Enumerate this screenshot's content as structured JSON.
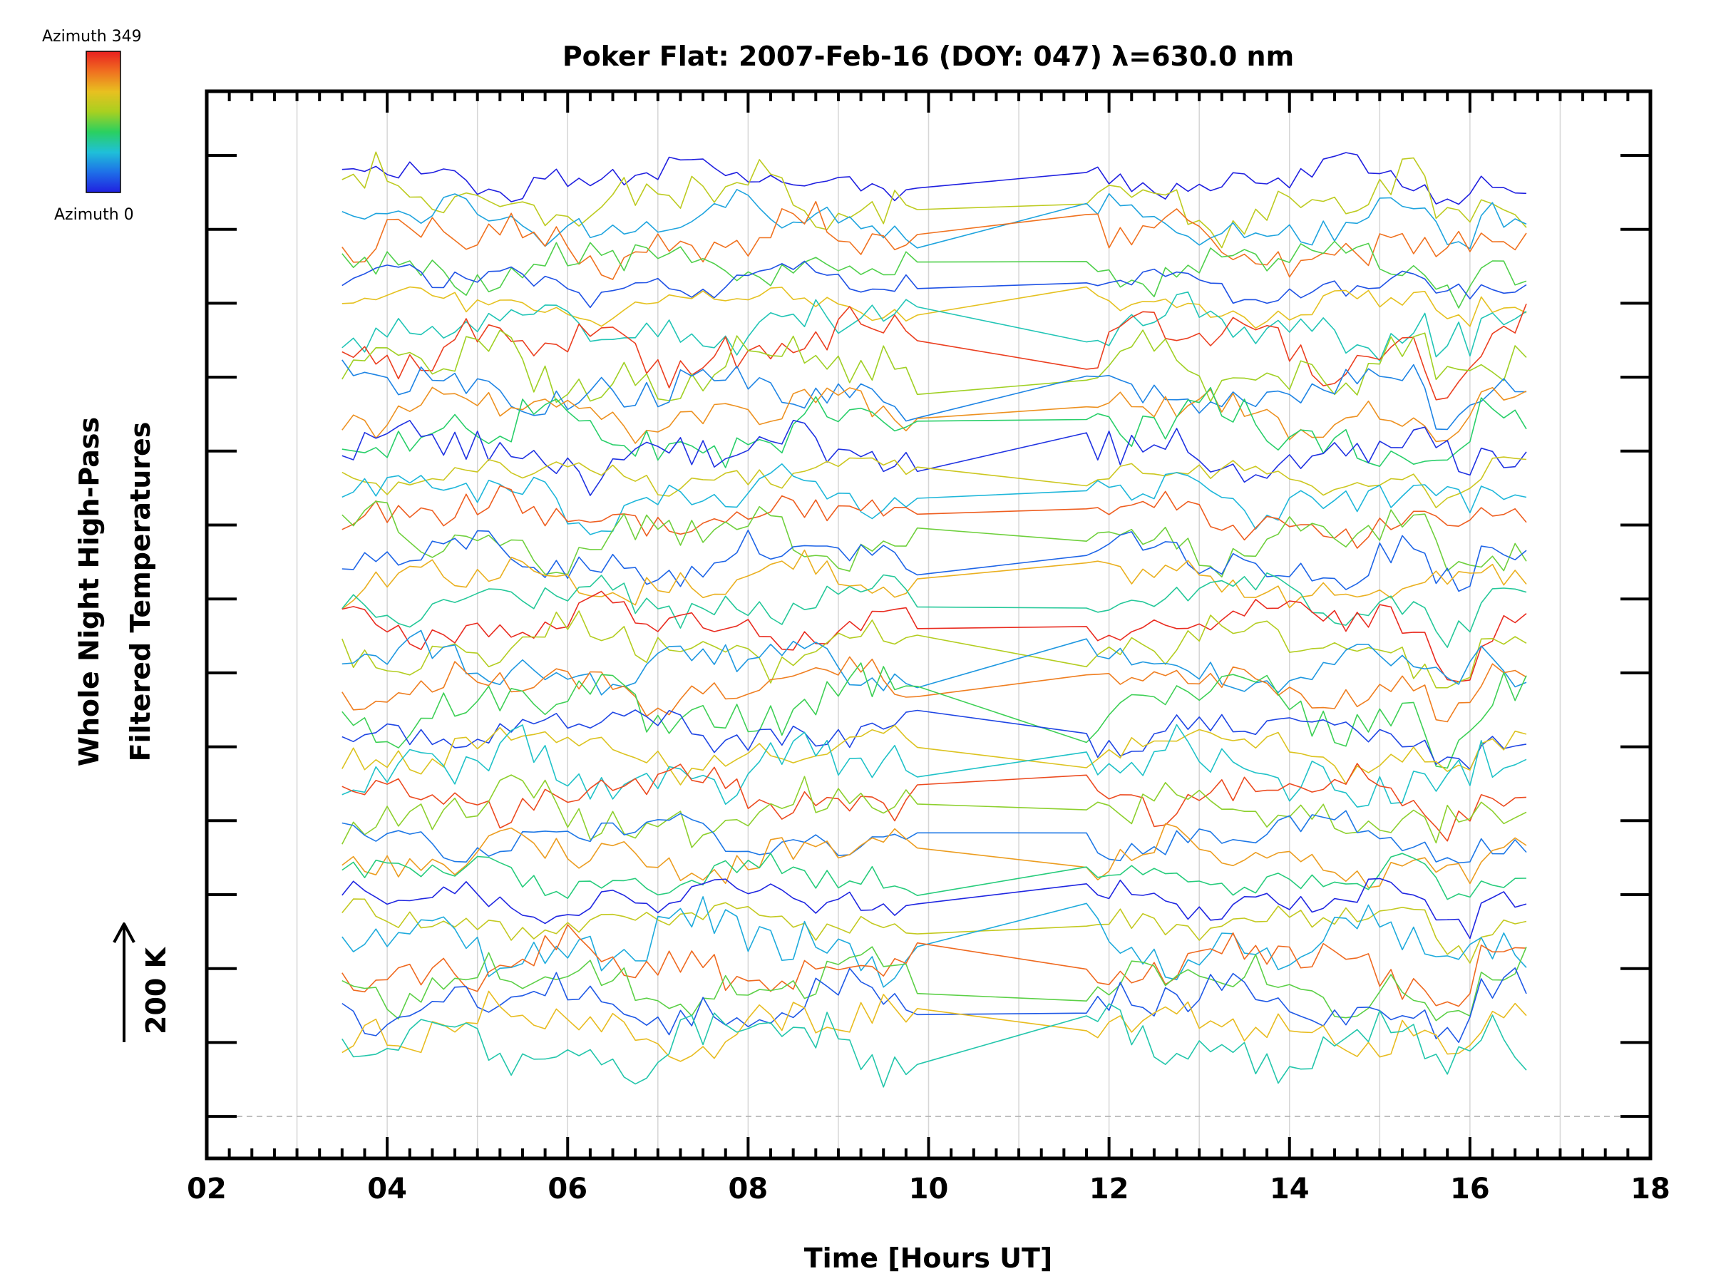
{
  "chart_data": {
    "type": "line",
    "title": "Poker Flat: 2007-Feb-16 (DOY: 047) λ=630.0 nm",
    "xlabel": "Time [Hours UT]",
    "ylabel_line1": "Whole Night High-Pass",
    "ylabel_line2": "Filtered Temperatures",
    "scale_label": "200 K",
    "xlim": [
      2,
      18
    ],
    "x_ticks": [
      "02",
      "04",
      "06",
      "08",
      "10",
      "12",
      "14",
      "16",
      "18"
    ],
    "y_ticks_count": 14,
    "y_ticks_units": "offset steps (200 K scale bar = 1.5 steps)",
    "grid": "vertical dotted lines every hour",
    "colorbar": {
      "label_top": "Azimuth  349",
      "label_bottom": "Azimuth  0",
      "min": 0,
      "max": 349,
      "palette": [
        "#2020e0",
        "#1e6fe8",
        "#1fc0d8",
        "#2ad060",
        "#a8d020",
        "#e8c020",
        "#f07020",
        "#e82020"
      ]
    },
    "data_start_hour": 3.5,
    "data_end_hour": 16.65,
    "data_gap_hours": [
      9.95,
      11.75
    ],
    "series_count": 42,
    "series_note": "42 azimuth traces, each vertically offset; temperatures are high-pass filtered with the color indicating azimuth (0 = blue to 349 = red)"
  }
}
